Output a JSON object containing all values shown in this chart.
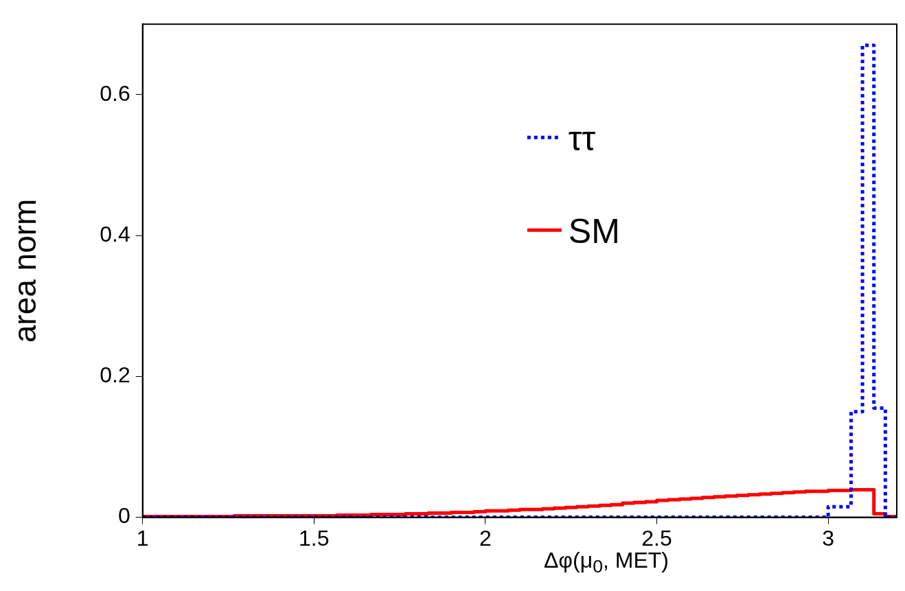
{
  "chart_data": {
    "type": "histogram",
    "xlabel": "Δφ(μ$_{0}$, MET)",
    "ylabel": "area norm",
    "bins": [
      1,
      1.0333,
      1.0667,
      1.1,
      1.1333,
      1.1667,
      1.2,
      1.2333,
      1.2667,
      1.3,
      1.3333,
      1.3667,
      1.4,
      1.4333,
      1.4667,
      1.5,
      1.5333,
      1.5667,
      1.6,
      1.6333,
      1.6667,
      1.7,
      1.7333,
      1.7667,
      1.8,
      1.8333,
      1.8667,
      1.9,
      1.9333,
      1.9667,
      2,
      2.0333,
      2.0667,
      2.1,
      2.1333,
      2.1667,
      2.2,
      2.2333,
      2.2667,
      2.3,
      2.3333,
      2.3667,
      2.4,
      2.4333,
      2.4667,
      2.5,
      2.5333,
      2.5667,
      2.6,
      2.6333,
      2.6667,
      2.7,
      2.7333,
      2.7667,
      2.8,
      2.8333,
      2.8667,
      2.9,
      2.9333,
      2.9667,
      3,
      3.0333,
      3.0667,
      3.1,
      3.1333,
      3.1667,
      3.2
    ],
    "series": [
      {
        "name": "ττ",
        "color": "#0000ff",
        "line_style": "dotted",
        "values": [
          0,
          0,
          0,
          0,
          0,
          0,
          0,
          0,
          0,
          0,
          0,
          0,
          0,
          0,
          0,
          0,
          0,
          0,
          0,
          0,
          0,
          0,
          0,
          0,
          0,
          0,
          0,
          0,
          0,
          0,
          0,
          0,
          0,
          0,
          0,
          0,
          0,
          0,
          0,
          0,
          0,
          0,
          0,
          0,
          0,
          0,
          0,
          0,
          0,
          0,
          0,
          0,
          0,
          0,
          0,
          0,
          0,
          0,
          0,
          0,
          0.015,
          0.015,
          0.15,
          0.67,
          0.155,
          0
        ]
      },
      {
        "name": "SM",
        "color": "#ff0000",
        "line_style": "solid",
        "values": [
          0.001,
          0.001,
          0.001,
          0.001,
          0.001,
          0.001,
          0.001,
          0.001,
          0.002,
          0.002,
          0.002,
          0.002,
          0.002,
          0.002,
          0.002,
          0.002,
          0.002,
          0.003,
          0.003,
          0.003,
          0.004,
          0.004,
          0.004,
          0.005,
          0.005,
          0.006,
          0.006,
          0.007,
          0.007,
          0.008,
          0.009,
          0.009,
          0.01,
          0.011,
          0.011,
          0.012,
          0.013,
          0.014,
          0.015,
          0.016,
          0.017,
          0.018,
          0.02,
          0.021,
          0.022,
          0.024,
          0.025,
          0.026,
          0.027,
          0.028,
          0.029,
          0.03,
          0.031,
          0.032,
          0.033,
          0.034,
          0.035,
          0.036,
          0.037,
          0.037,
          0.038,
          0.038,
          0.039,
          0.039,
          0.005,
          0.001
        ]
      }
    ],
    "xlim": [
      1,
      3.2
    ],
    "xticks": [
      1,
      1.5,
      2,
      2.5,
      3
    ],
    "ylim": [
      0,
      0.7
    ],
    "yticks": [
      0,
      0.2,
      0.4,
      0.6
    ],
    "grid": false,
    "legend": "top"
  }
}
